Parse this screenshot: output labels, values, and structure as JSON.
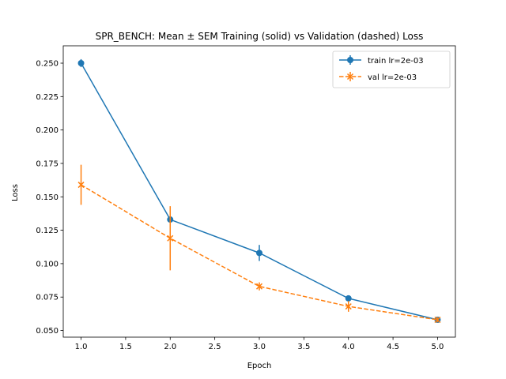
{
  "chart_data": {
    "type": "line",
    "title": "SPR_BENCH: Mean ± SEM Training (solid) vs Validation (dashed) Loss",
    "xlabel": "Epoch",
    "ylabel": "Loss",
    "xlim": [
      0.8,
      5.2
    ],
    "ylim": [
      0.045,
      0.263
    ],
    "xticks": [
      1.0,
      1.5,
      2.0,
      2.5,
      3.0,
      3.5,
      4.0,
      4.5,
      5.0
    ],
    "xtick_labels": [
      "1.0",
      "1.5",
      "2.0",
      "2.5",
      "3.0",
      "3.5",
      "4.0",
      "4.5",
      "5.0"
    ],
    "yticks": [
      0.05,
      0.075,
      0.1,
      0.125,
      0.15,
      0.175,
      0.2,
      0.225,
      0.25
    ],
    "ytick_labels": [
      "0.050",
      "0.075",
      "0.100",
      "0.125",
      "0.150",
      "0.175",
      "0.200",
      "0.225",
      "0.250"
    ],
    "grid": false,
    "legend_position": "top-right",
    "series": [
      {
        "name": "train lr=2e-03",
        "style": "solid",
        "marker": "circle",
        "color": "#1f77b4",
        "x": [
          1,
          2,
          3,
          4,
          5
        ],
        "y": [
          0.25,
          0.133,
          0.108,
          0.074,
          0.058
        ],
        "err": [
          0.003,
          0.002,
          0.006,
          0.002,
          0.002
        ]
      },
      {
        "name": "val lr=2e-03",
        "style": "dashed",
        "marker": "x",
        "color": "#ff7f0e",
        "x": [
          1,
          2,
          3,
          4,
          5
        ],
        "y": [
          0.159,
          0.119,
          0.083,
          0.068,
          0.058
        ],
        "err": [
          0.015,
          0.024,
          0.003,
          0.004,
          0.002
        ]
      }
    ]
  }
}
